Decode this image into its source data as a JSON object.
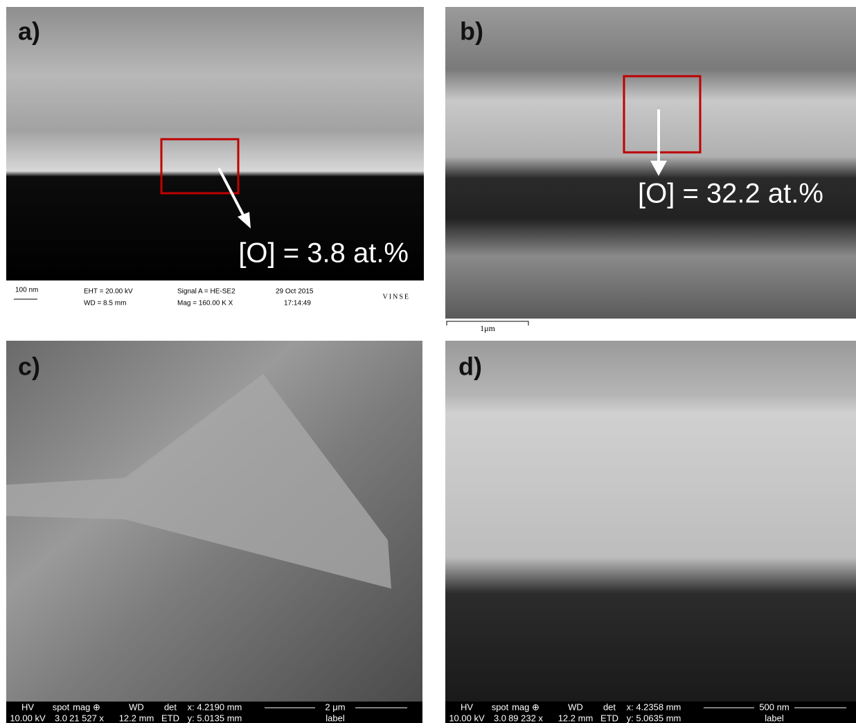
{
  "panels": [
    {
      "label": "a)",
      "annotation": "[O] = 3.8 at.%",
      "info_bar": [
        "100 nm",
        "EHT = 20.00 kV",
        "WD = 8.5 mm",
        "Signal A = HE-SE2",
        "Mag = 160.00 K X",
        "29 Oct 2015",
        "17:14:49",
        "VINSE"
      ]
    },
    {
      "label": "b)",
      "annotation": "[O] = 32.2 at.%",
      "scale_bar": "1μm"
    },
    {
      "label": "c)",
      "meta_bar": {
        "row1": [
          "HV",
          "spot",
          "mag ⊕",
          "WD",
          "det",
          "x: 4.2190 mm",
          "2 μm"
        ],
        "row2": [
          "10.00 kV",
          "3.0",
          "21 527 x",
          "12.2 mm",
          "ETD",
          "y: 5.0135 mm",
          "label"
        ]
      }
    },
    {
      "label": "d)",
      "meta_bar": {
        "row1": [
          "HV",
          "spot",
          "mag ⊕",
          "WD",
          "det",
          "x: 4.2358 mm",
          "500 nm"
        ],
        "row2": [
          "10.00 kV",
          "3.0",
          "89 232 x",
          "12.2 mm",
          "ETD",
          "y: 5.0635 mm",
          "label"
        ]
      }
    }
  ]
}
